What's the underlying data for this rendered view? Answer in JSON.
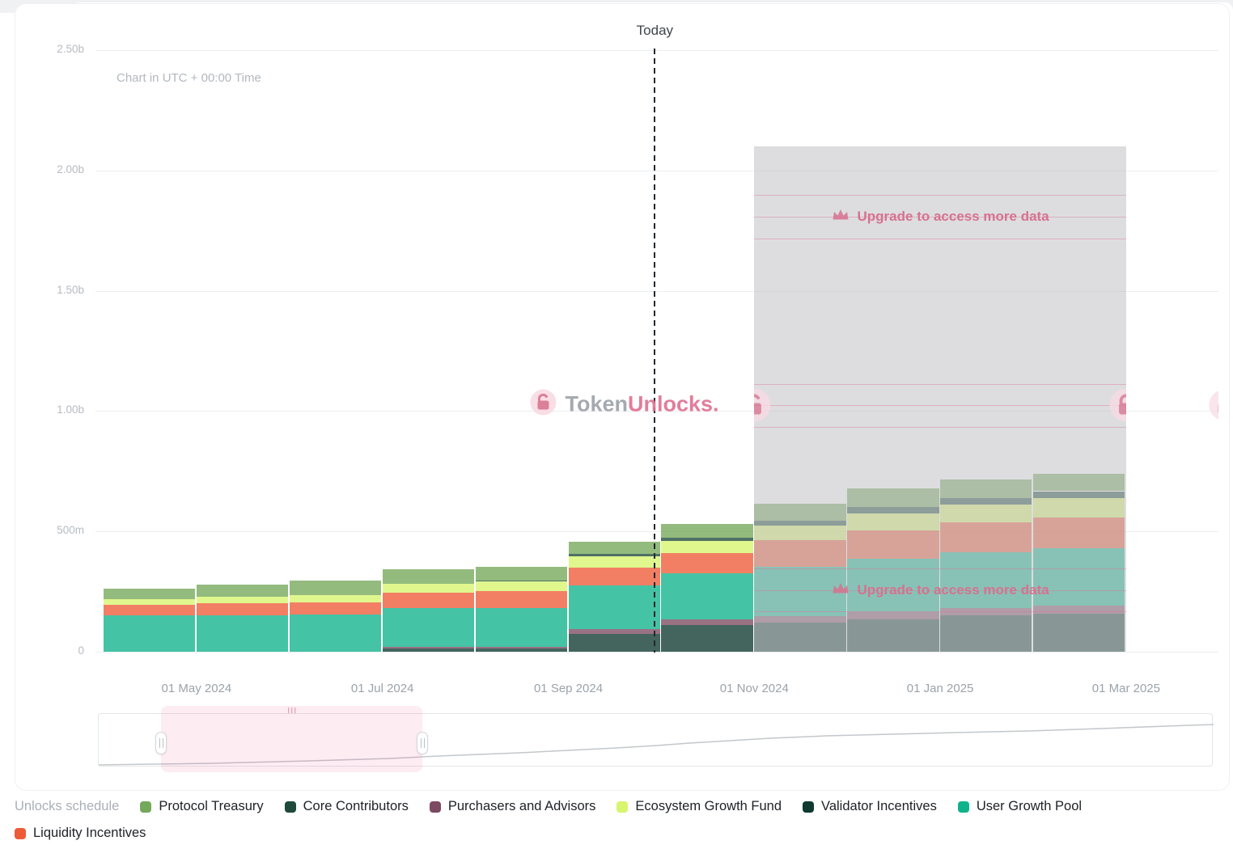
{
  "chart": {
    "timezone_note": "Chart in UTC + 00:00 Time",
    "today_label": "Today",
    "watermark": {
      "prefix": "Token",
      "suffix": "Unlocks."
    },
    "upgrade_text": "Upgrade to access more data",
    "y_axis_ticks": [
      "0",
      "500m",
      "1.00b",
      "1.50b",
      "2.00b",
      "2.50b"
    ],
    "x_axis_ticks": [
      "01 May 2024",
      "01 Jul 2024",
      "01 Sep 2024",
      "01 Nov 2024",
      "01 Jan 2025",
      "01 Mar 2025"
    ]
  },
  "chart_data": {
    "type": "bar",
    "stacked": true,
    "unit": "tokens (millions)",
    "categories": [
      "Apr 2024",
      "May 2024",
      "Jun 2024",
      "Jul 2024",
      "Aug 2024",
      "Sep 2024",
      "Oct 2024",
      "Nov 2024",
      "Dec 2024",
      "Jan 2025",
      "Feb 2025"
    ],
    "series": [
      {
        "name": "Validator Incentives",
        "color": "#0e3a31",
        "values": [
          0,
          0,
          0,
          12,
          12,
          75,
          110,
          120,
          135,
          150,
          158
        ]
      },
      {
        "name": "Purchasers and Advisors",
        "color": "#7c4a62",
        "values": [
          0,
          0,
          0,
          8,
          8,
          20,
          25,
          28,
          30,
          33,
          35
        ]
      },
      {
        "name": "User Growth Pool",
        "color": "#10b28c",
        "values": [
          150,
          152,
          155,
          160,
          163,
          180,
          190,
          205,
          220,
          230,
          238
        ]
      },
      {
        "name": "Liquidity Incentives",
        "color": "#ee5b38",
        "values": [
          45,
          48,
          50,
          65,
          68,
          75,
          85,
          110,
          118,
          123,
          128
        ]
      },
      {
        "name": "Ecosystem Growth Fund",
        "color": "#d7f56d",
        "values": [
          25,
          28,
          30,
          38,
          40,
          45,
          50,
          60,
          70,
          75,
          78
        ]
      },
      {
        "name": "Core Contributors",
        "color": "#1d4a3a",
        "values": [
          0,
          0,
          0,
          0,
          5,
          12,
          15,
          22,
          27,
          29,
          30
        ]
      },
      {
        "name": "Protocol Treasury",
        "color": "#74a85a",
        "values": [
          42,
          50,
          60,
          60,
          57,
          50,
          55,
          70,
          79,
          76,
          73
        ]
      }
    ],
    "ylim": [
      0,
      2500
    ],
    "y_tick_values": [
      0,
      500,
      1000,
      1500,
      2000,
      2500
    ],
    "x_tick_category_indexes": [
      1,
      3,
      5,
      7,
      9,
      11
    ],
    "today_category_fraction": 5.93,
    "locked_region": {
      "start_category_index": 7,
      "span_categories": 4,
      "top_value": 2100,
      "label": "Upgrade to access more data"
    },
    "legend_position": "bottom",
    "grid": true
  },
  "legend": {
    "title": "Unlocks schedule",
    "items": [
      {
        "label": "Protocol Treasury",
        "color": "#74a85a"
      },
      {
        "label": "Core Contributors",
        "color": "#1d4a3a"
      },
      {
        "label": "Purchasers and Advisors",
        "color": "#7c4a62"
      },
      {
        "label": "Ecosystem Growth Fund",
        "color": "#d7f56d"
      },
      {
        "label": "Validator Incentives",
        "color": "#0e3a31"
      },
      {
        "label": "User Growth Pool",
        "color": "#10b28c"
      },
      {
        "label": "Liquidity Incentives",
        "color": "#ee5b38"
      }
    ]
  }
}
